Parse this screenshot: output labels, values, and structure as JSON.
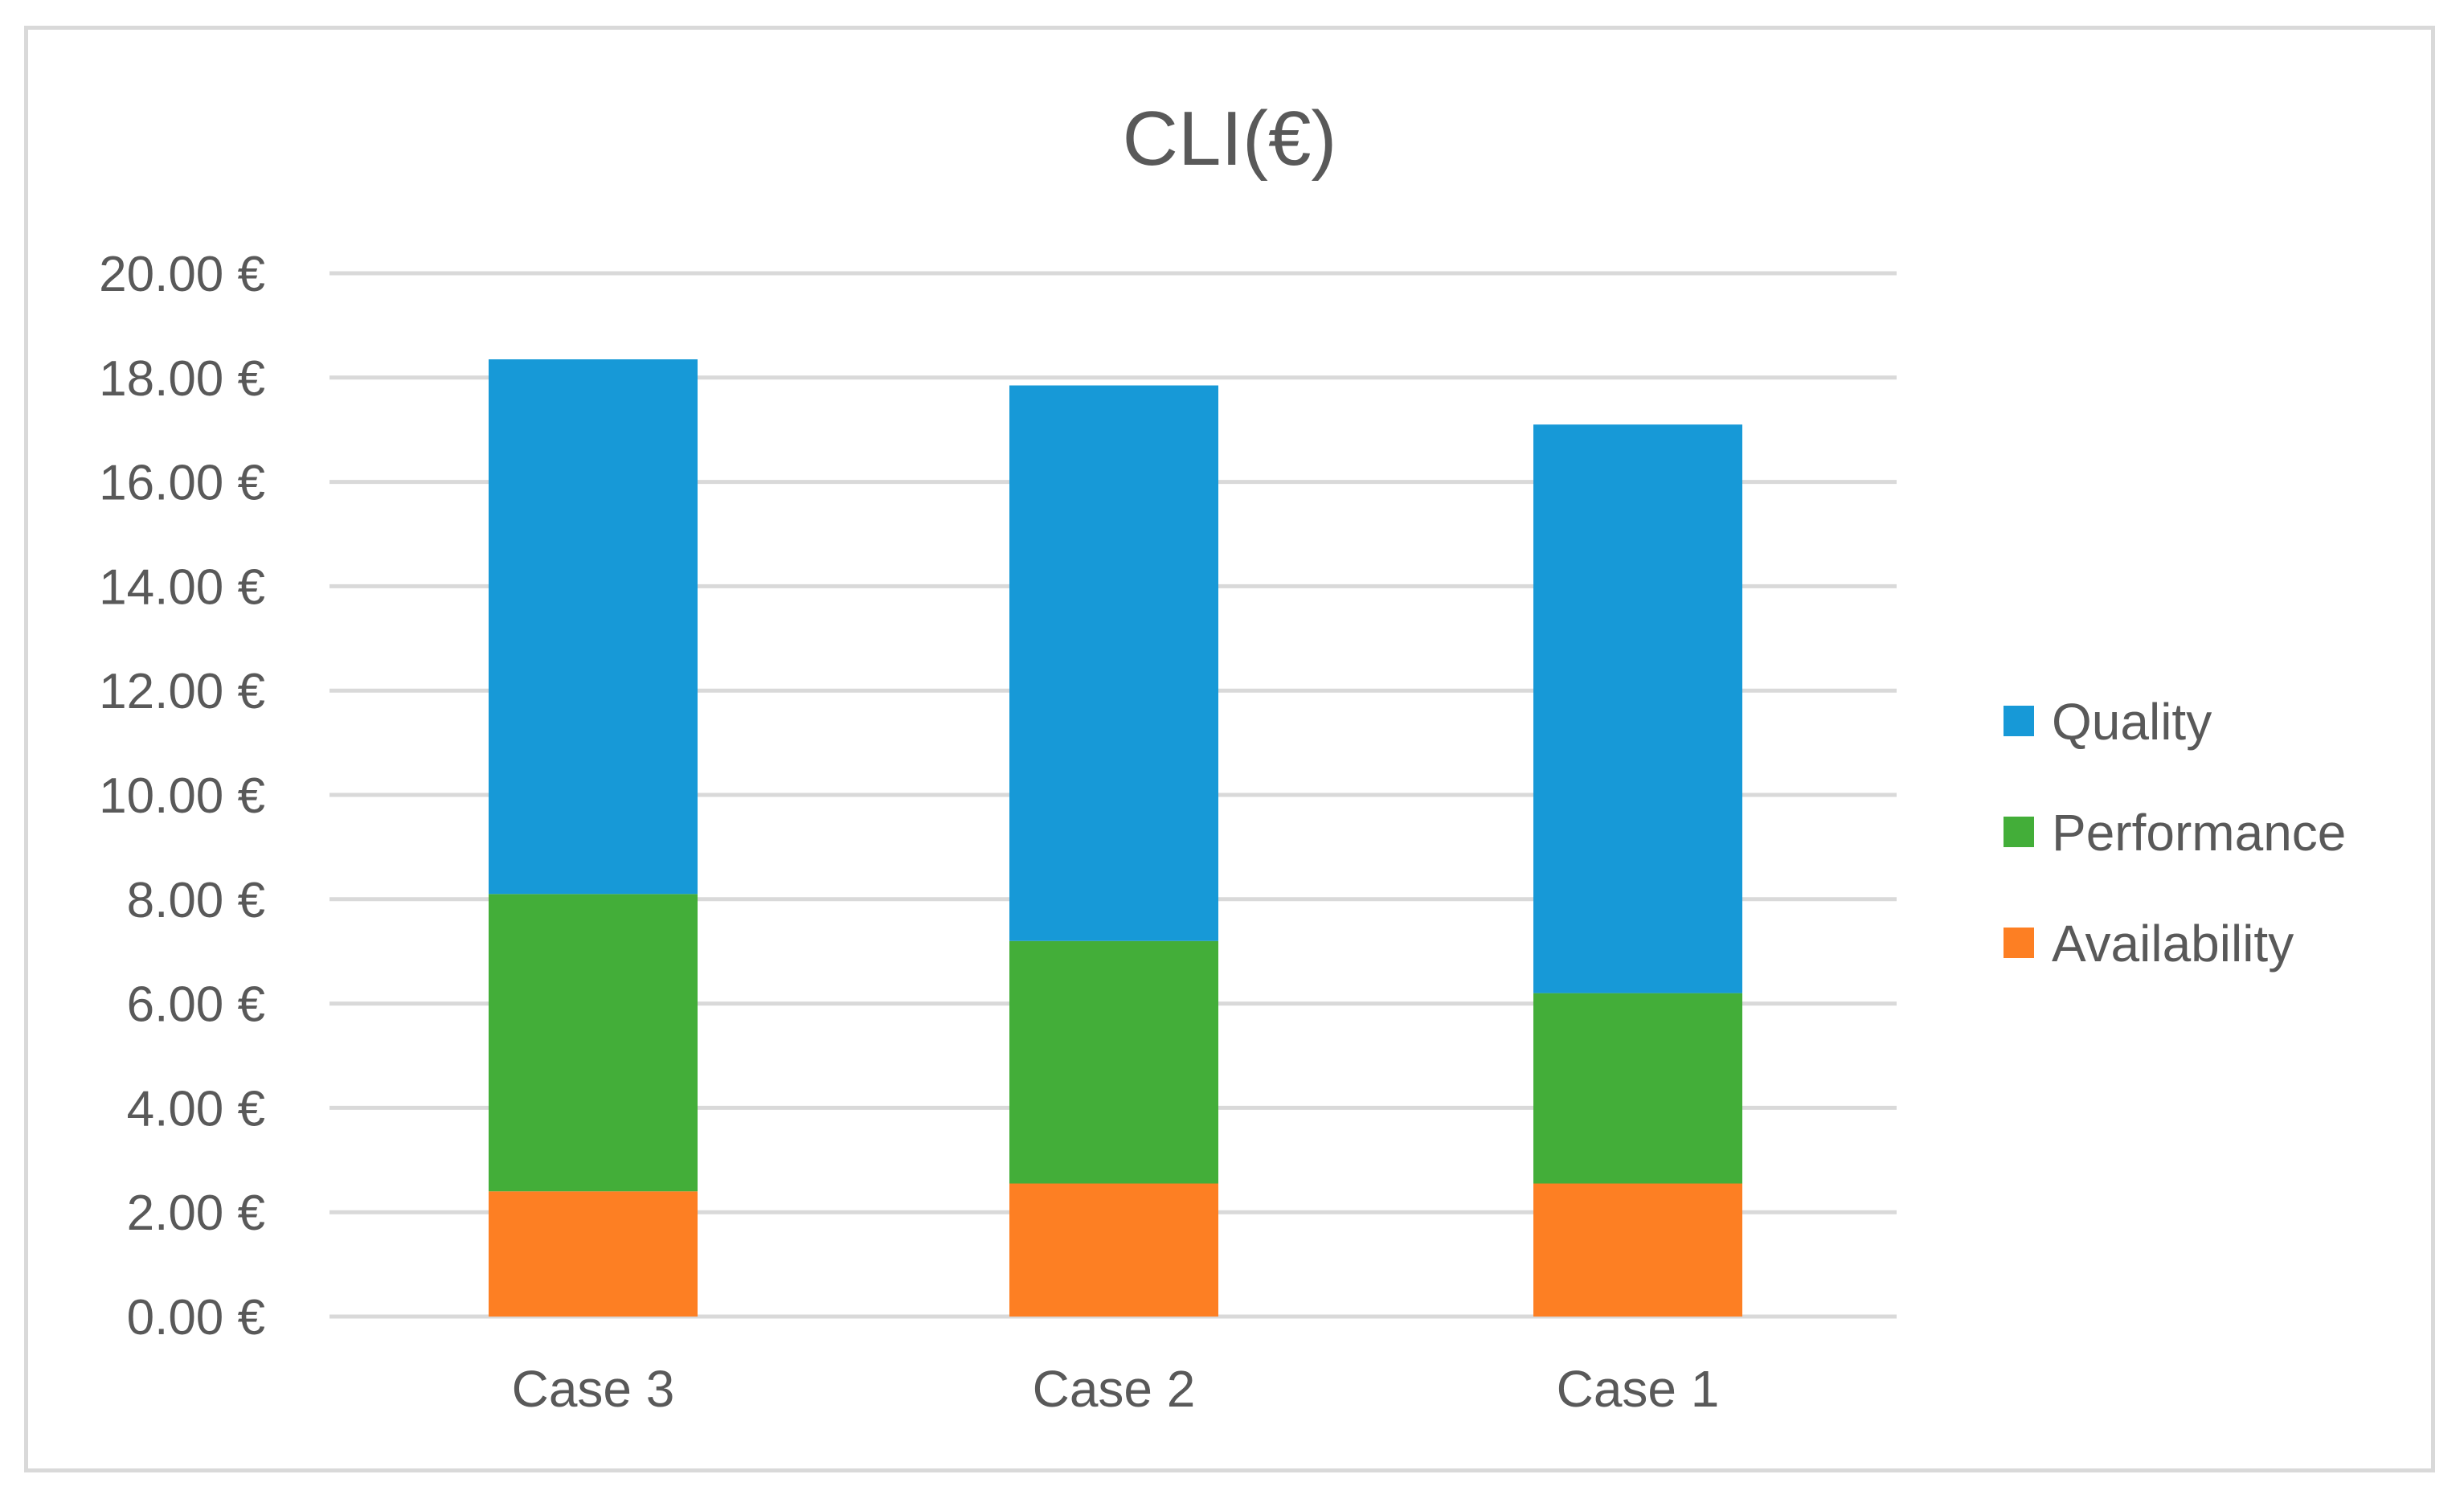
{
  "chart_data": {
    "type": "bar",
    "stacked": true,
    "title": "CLI(€)",
    "xlabel": "",
    "ylabel": "",
    "categories": [
      "Case 3",
      "Case 2",
      "Case 1"
    ],
    "ylim": [
      0,
      20
    ],
    "yticks": [
      0,
      2,
      4,
      6,
      8,
      10,
      12,
      14,
      16,
      18,
      20
    ],
    "ytick_labels": [
      "0.00 €",
      "2.00 €",
      "4.00 €",
      "6.00 €",
      "8.00 €",
      "10.00 €",
      "12.00 €",
      "14.00 €",
      "16.00 €",
      "18.00 €",
      "20.00 €"
    ],
    "grid": true,
    "legend_position": "right",
    "series": [
      {
        "name": "Availability",
        "color": "#fd7f23",
        "values": [
          2.4,
          2.55,
          2.55
        ]
      },
      {
        "name": "Performance",
        "color": "#43ae39",
        "values": [
          5.7,
          4.65,
          3.65
        ]
      },
      {
        "name": "Quality",
        "color": "#1799d7",
        "values": [
          10.25,
          10.65,
          10.9
        ]
      }
    ],
    "legend_order": [
      "Quality",
      "Performance",
      "Availability"
    ]
  }
}
